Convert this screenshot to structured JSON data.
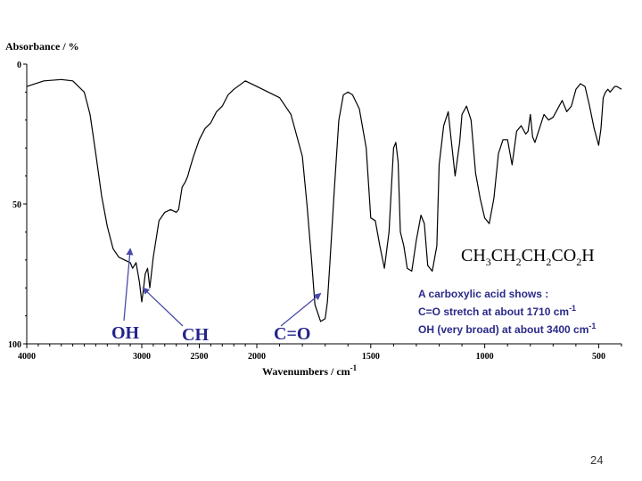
{
  "chart_data": {
    "type": "line",
    "title": "",
    "xlabel": "Wavenumbers / cm",
    "xlabel_exponent": "-1",
    "ylabel": "Absorbance / %",
    "x_reversed": true,
    "xlim": [
      4000,
      400
    ],
    "ylim": [
      0,
      100
    ],
    "y_inverted": true,
    "grid": false,
    "x_ticks": [
      "4000",
      "3000",
      "2500",
      "2000",
      "1500",
      "1000",
      "500"
    ],
    "x_tick_values": [
      4000,
      3000,
      2500,
      2000,
      1500,
      1000,
      500
    ],
    "y_ticks": [
      "0",
      "50",
      "100"
    ],
    "y_tick_values": [
      0,
      50,
      100
    ],
    "series": [
      {
        "color": "#000000",
        "points": [
          [
            4000,
            8
          ],
          [
            3850,
            6
          ],
          [
            3700,
            5.5
          ],
          [
            3600,
            6
          ],
          [
            3500,
            10
          ],
          [
            3450,
            18
          ],
          [
            3400,
            32
          ],
          [
            3350,
            47
          ],
          [
            3300,
            58
          ],
          [
            3250,
            66
          ],
          [
            3200,
            69
          ],
          [
            3150,
            70
          ],
          [
            3100,
            71
          ],
          [
            3080,
            73
          ],
          [
            3050,
            71
          ],
          [
            3020,
            78
          ],
          [
            3000,
            85
          ],
          [
            2990,
            82
          ],
          [
            2970,
            75
          ],
          [
            2950,
            73
          ],
          [
            2930,
            80
          ],
          [
            2900,
            69
          ],
          [
            2850,
            56
          ],
          [
            2800,
            53
          ],
          [
            2750,
            52
          ],
          [
            2700,
            53
          ],
          [
            2680,
            52
          ],
          [
            2650,
            44
          ],
          [
            2620,
            42
          ],
          [
            2600,
            40
          ],
          [
            2580,
            37
          ],
          [
            2550,
            33
          ],
          [
            2500,
            27
          ],
          [
            2450,
            23
          ],
          [
            2400,
            21
          ],
          [
            2350,
            17
          ],
          [
            2300,
            15
          ],
          [
            2250,
            11
          ],
          [
            2200,
            9
          ],
          [
            2100,
            6
          ],
          [
            2000,
            8
          ],
          [
            1900,
            12
          ],
          [
            1850,
            18
          ],
          [
            1800,
            33
          ],
          [
            1780,
            50
          ],
          [
            1760,
            70
          ],
          [
            1745,
            86
          ],
          [
            1720,
            92
          ],
          [
            1700,
            91
          ],
          [
            1690,
            85
          ],
          [
            1680,
            72
          ],
          [
            1660,
            45
          ],
          [
            1640,
            20
          ],
          [
            1620,
            11
          ],
          [
            1600,
            10
          ],
          [
            1580,
            11
          ],
          [
            1550,
            16
          ],
          [
            1520,
            30
          ],
          [
            1500,
            55
          ],
          [
            1480,
            56
          ],
          [
            1460,
            65
          ],
          [
            1440,
            73
          ],
          [
            1420,
            60
          ],
          [
            1410,
            45
          ],
          [
            1400,
            30
          ],
          [
            1390,
            28
          ],
          [
            1380,
            35
          ],
          [
            1370,
            60
          ],
          [
            1355,
            65
          ],
          [
            1340,
            73
          ],
          [
            1320,
            74
          ],
          [
            1300,
            63
          ],
          [
            1280,
            54
          ],
          [
            1265,
            57
          ],
          [
            1250,
            72
          ],
          [
            1230,
            74
          ],
          [
            1210,
            65
          ],
          [
            1200,
            36
          ],
          [
            1180,
            22
          ],
          [
            1160,
            17
          ],
          [
            1150,
            25
          ],
          [
            1130,
            40
          ],
          [
            1110,
            28
          ],
          [
            1100,
            18
          ],
          [
            1080,
            15
          ],
          [
            1060,
            20
          ],
          [
            1040,
            39
          ],
          [
            1020,
            48
          ],
          [
            1000,
            55
          ],
          [
            980,
            57
          ],
          [
            960,
            48
          ],
          [
            940,
            32
          ],
          [
            920,
            27
          ],
          [
            900,
            27
          ],
          [
            880,
            36
          ],
          [
            860,
            24
          ],
          [
            840,
            22
          ],
          [
            820,
            25
          ],
          [
            810,
            24
          ],
          [
            800,
            18
          ],
          [
            790,
            26
          ],
          [
            780,
            28
          ],
          [
            760,
            23
          ],
          [
            740,
            18
          ],
          [
            720,
            20
          ],
          [
            700,
            19
          ],
          [
            680,
            16
          ],
          [
            660,
            13
          ],
          [
            640,
            17
          ],
          [
            620,
            15
          ],
          [
            600,
            9
          ],
          [
            580,
            7
          ],
          [
            560,
            8
          ],
          [
            540,
            15
          ],
          [
            520,
            23
          ],
          [
            500,
            29
          ],
          [
            490,
            23
          ],
          [
            480,
            12
          ],
          [
            470,
            10
          ],
          [
            460,
            9
          ],
          [
            450,
            10
          ],
          [
            440,
            9
          ],
          [
            430,
            8
          ],
          [
            420,
            8
          ],
          [
            400,
            9
          ]
        ]
      }
    ],
    "annotations": [
      {
        "text": "OH",
        "x": 3100,
        "y": 66
      },
      {
        "text": "CH",
        "x": 2990,
        "y": 80
      },
      {
        "text": "C=O",
        "x": 1720,
        "y": 82
      }
    ]
  },
  "formula": {
    "parts": [
      {
        "text": "CH",
        "sub": "3"
      },
      {
        "text": "CH",
        "sub": "2"
      },
      {
        "text": "CH",
        "sub": "2"
      },
      {
        "text": "CO",
        "sub": "2"
      },
      {
        "text": "H",
        "sub": ""
      }
    ]
  },
  "note": {
    "line1": "A carboxylic acid shows :",
    "line2": "C=O stretch at about 1710 cm",
    "line2_sup": "-1",
    "line3": "OH (very broad) at about 3400 cm",
    "line3_sup": "-1"
  },
  "peak_labels": {
    "oh": "OH",
    "ch": "CH",
    "co": "C=O"
  },
  "page_number": "24",
  "colors": {
    "spectrum": "#000000",
    "annotation": "#23238c",
    "arrow": "#4a4aa8",
    "note": "#2a2a8a"
  }
}
